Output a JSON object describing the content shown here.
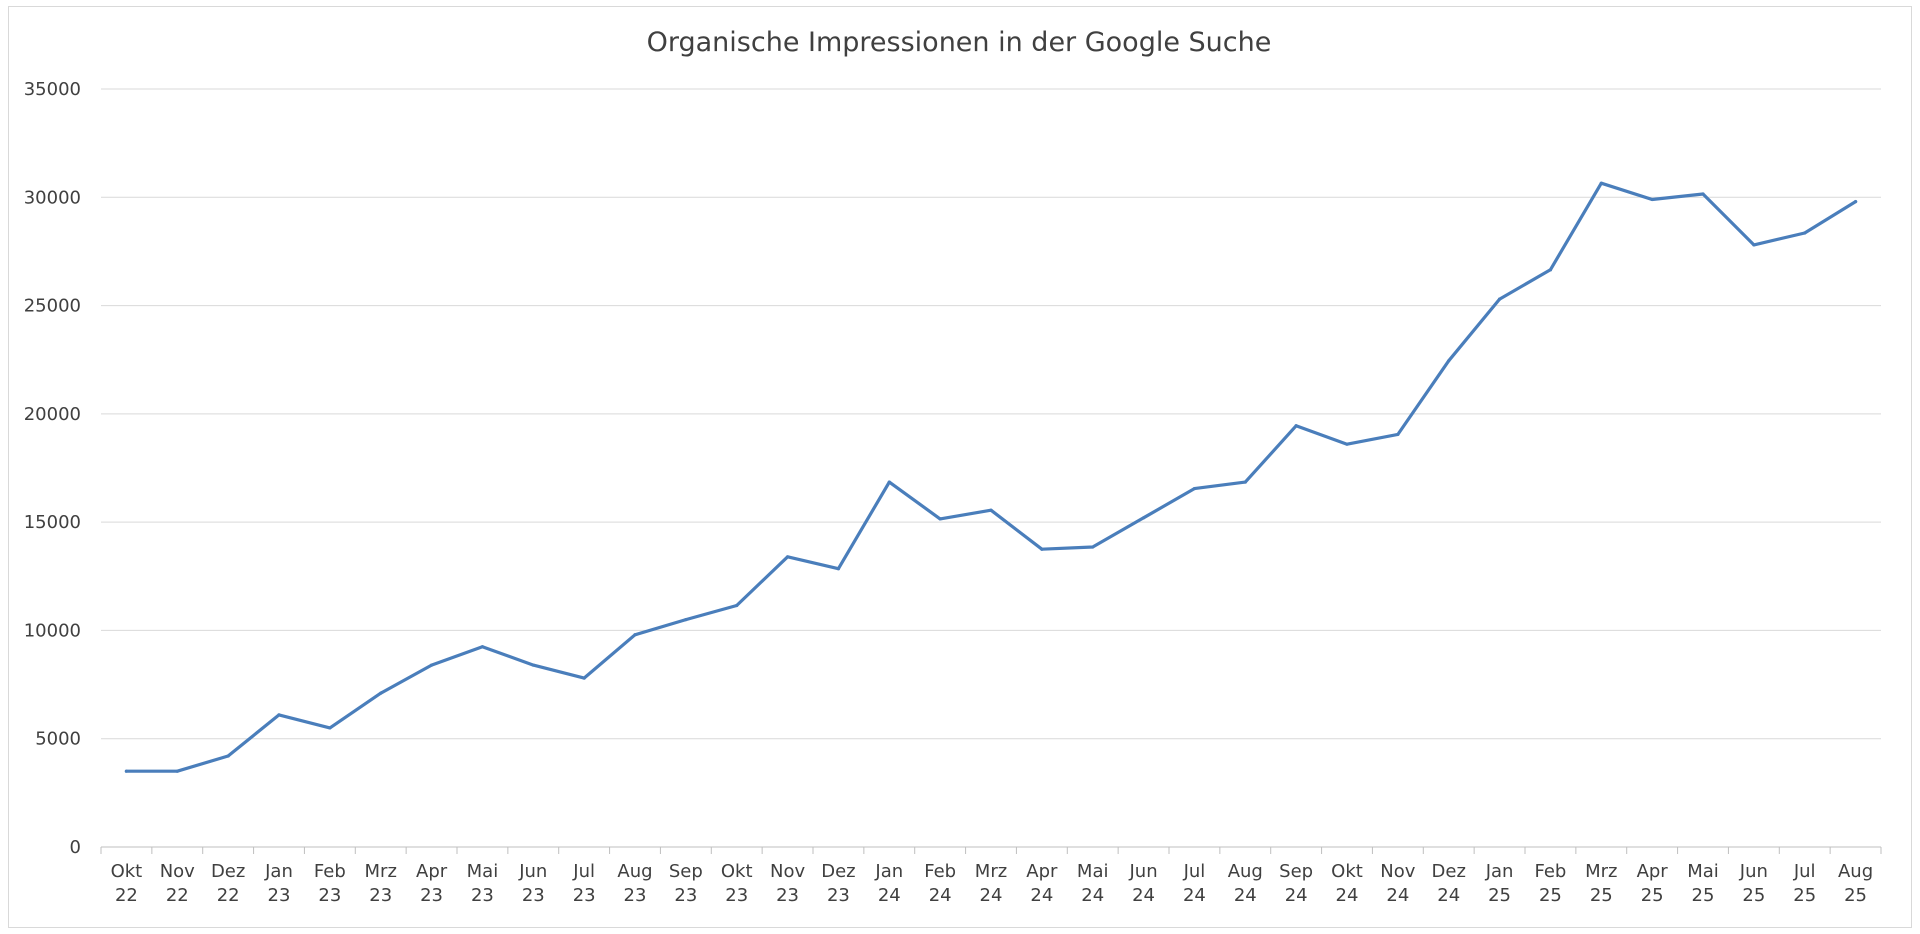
{
  "colors": {
    "series": "#4a7ebb",
    "grid": "#d9d9d9",
    "text": "#404040"
  },
  "chart_data": {
    "type": "line",
    "title": "Organische Impressionen in der Google Suche",
    "xlabel": "",
    "ylabel": "",
    "ylim": [
      0,
      35000
    ],
    "yticks": [
      "0",
      "5000",
      "10000",
      "15000",
      "20000",
      "25000",
      "30000",
      "35000"
    ],
    "grid": true,
    "legend": "none",
    "categories": [
      [
        "Okt",
        "22"
      ],
      [
        "Nov",
        "22"
      ],
      [
        "Dez",
        "22"
      ],
      [
        "Jan",
        "23"
      ],
      [
        "Feb",
        "23"
      ],
      [
        "Mrz",
        "23"
      ],
      [
        "Apr",
        "23"
      ],
      [
        "Mai",
        "23"
      ],
      [
        "Jun",
        "23"
      ],
      [
        "Jul",
        "23"
      ],
      [
        "Aug",
        "23"
      ],
      [
        "Sep",
        "23"
      ],
      [
        "Okt",
        "23"
      ],
      [
        "Nov",
        "23"
      ],
      [
        "Dez",
        "23"
      ],
      [
        "Jan",
        "24"
      ],
      [
        "Feb",
        "24"
      ],
      [
        "Mrz",
        "24"
      ],
      [
        "Apr",
        "24"
      ],
      [
        "Mai",
        "24"
      ],
      [
        "Jun",
        "24"
      ],
      [
        "Jul",
        "24"
      ],
      [
        "Aug",
        "24"
      ],
      [
        "Sep",
        "24"
      ],
      [
        "Okt",
        "24"
      ],
      [
        "Nov",
        "24"
      ],
      [
        "Dez",
        "24"
      ],
      [
        "Jan",
        "25"
      ],
      [
        "Feb",
        "25"
      ],
      [
        "Mrz",
        "25"
      ],
      [
        "Apr",
        "25"
      ],
      [
        "Mai",
        "25"
      ],
      [
        "Jun",
        "25"
      ],
      [
        "Jul",
        "25"
      ],
      [
        "Aug",
        "25"
      ]
    ],
    "series": [
      {
        "values": [
          3500,
          3500,
          4200,
          6100,
          5500,
          7100,
          8400,
          9250,
          8400,
          7800,
          9800,
          10500,
          11150,
          13400,
          12850,
          16850,
          15150,
          15550,
          13750,
          13850,
          15200,
          16550,
          16850,
          19450,
          18600,
          19050,
          22450,
          25300,
          26650,
          30650,
          29900,
          30150,
          27800,
          28350,
          29800
        ]
      }
    ]
  }
}
